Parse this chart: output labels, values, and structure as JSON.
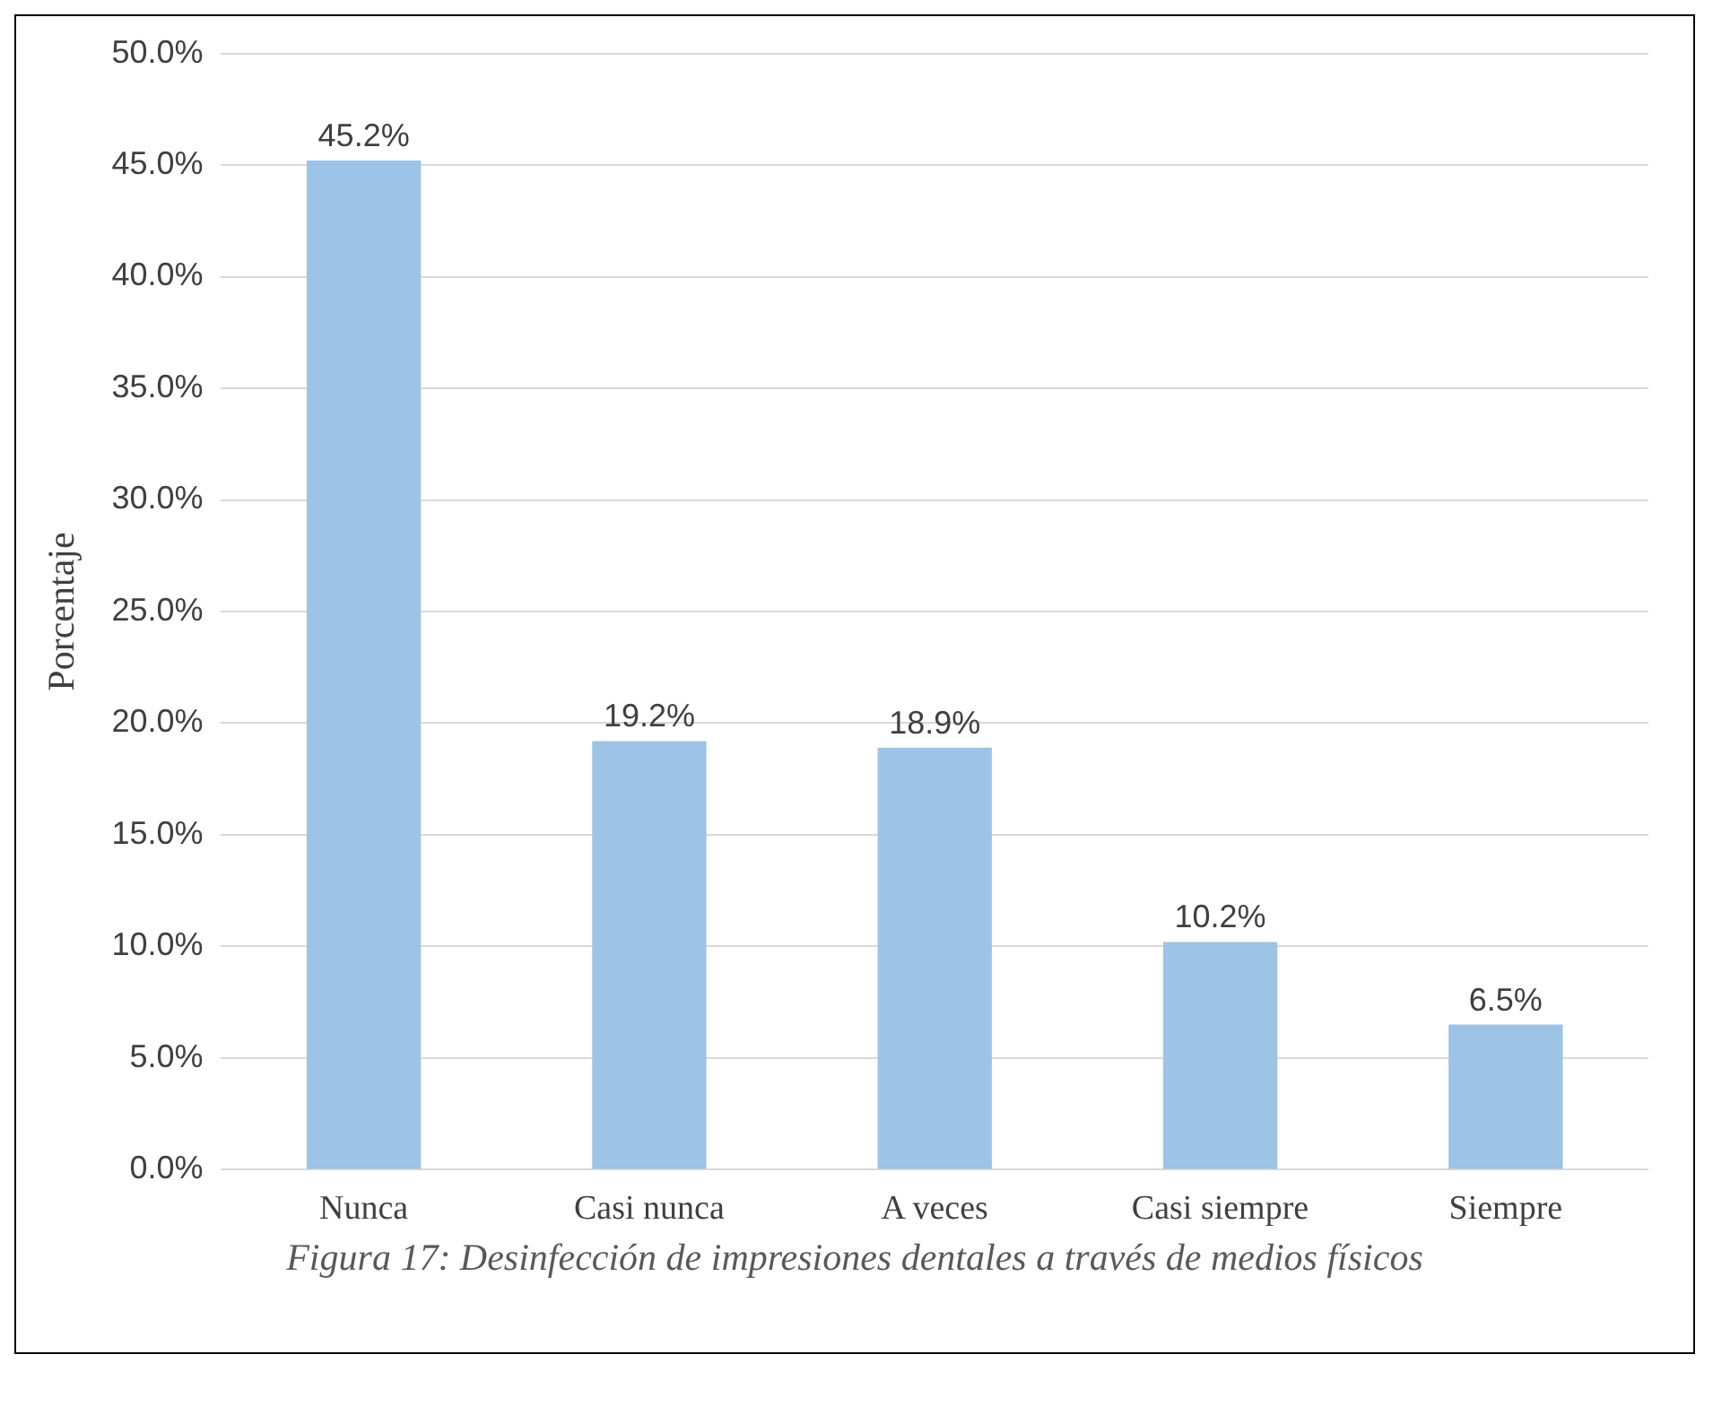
{
  "chart_data": {
    "type": "bar",
    "title": "Figura 17: Desinfección de impresiones dentales a través de medios físicos",
    "ylabel": "Porcentaje",
    "categories": [
      "Nunca",
      "Casi nunca",
      "A veces",
      "Casi siempre",
      "Siempre"
    ],
    "values": [
      45.2,
      19.2,
      18.9,
      10.2,
      6.5
    ],
    "color": "#9dc3e6",
    "value_labels": [
      "45.2%",
      "19.2%",
      "18.9%",
      "10.2%",
      "6.5%"
    ],
    "ylim": [
      0,
      50
    ],
    "yticks": [
      {
        "value": 0,
        "label": "0.0%"
      },
      {
        "value": 5,
        "label": "5.0%"
      },
      {
        "value": 10,
        "label": "10.0%"
      },
      {
        "value": 15,
        "label": "15.0%"
      },
      {
        "value": 20,
        "label": "20.0%"
      },
      {
        "value": 25,
        "label": "25.0%"
      },
      {
        "value": 30,
        "label": "30.0%"
      },
      {
        "value": 35,
        "label": "35.0%"
      },
      {
        "value": 40,
        "label": "40.0%"
      },
      {
        "value": 45,
        "label": "45.0%"
      },
      {
        "value": 50,
        "label": "50.0%"
      }
    ],
    "grid": "y",
    "legend": false
  }
}
